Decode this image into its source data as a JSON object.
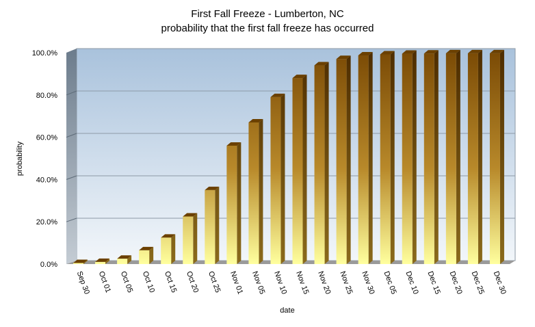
{
  "chart_data": {
    "type": "bar",
    "title": "First Fall Freeze  - Lumberton,  NC",
    "subtitle": "probability  that  the  first  fall  freeze  has  occurred",
    "xlabel": "date",
    "ylabel": "probability",
    "ylim": [
      0,
      100
    ],
    "y_ticks": [
      "0.0%",
      "20.0%",
      "40.0%",
      "60.0%",
      "80.0%",
      "100.0%"
    ],
    "grid": true,
    "legend": "none",
    "categories": [
      "Sep 30",
      "Oct 01",
      "Oct 05",
      "Oct 10",
      "Oct 15",
      "Oct 20",
      "Oct 25",
      "Nov 01",
      "Nov 05",
      "Nov 10",
      "Nov 15",
      "Nov 20",
      "Nov 25",
      "Nov 30",
      "Dec 05",
      "Dec 10",
      "Dec 15",
      "Dec 20",
      "Dec 25",
      "Dec 30"
    ],
    "values": [
      0.5,
      1,
      2.5,
      6.5,
      12.5,
      22.5,
      35,
      56,
      67,
      79,
      88,
      94,
      97,
      98.7,
      99.2,
      99.5,
      99.6,
      99.7,
      99.7,
      99.7
    ],
    "colors": {
      "bar_top": "#7a4a05",
      "bar_bottom": "#ffff9e",
      "bar_side": "#5a3300",
      "plot_top": "#a9c2dc",
      "plot_bottom": "#f2f6fa",
      "wall": "#7d8a96",
      "floor": "#9a9a9a"
    }
  }
}
